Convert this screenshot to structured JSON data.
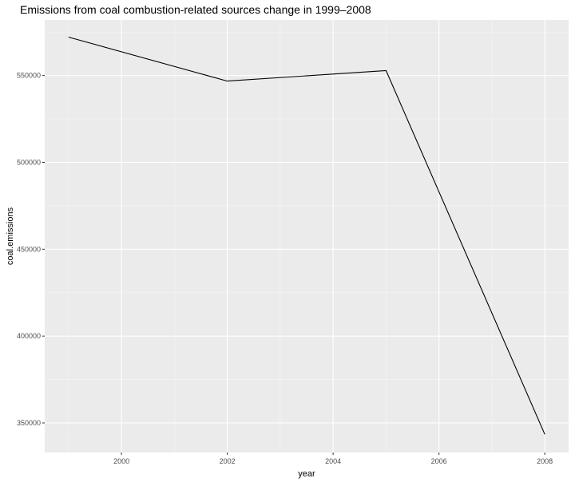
{
  "chart_data": {
    "type": "line",
    "title": "Emissions from coal combustion-related sources change in 1999–2008",
    "xlabel": "year",
    "ylabel": "coal.emissions",
    "x": [
      1999,
      2002,
      2005,
      2008
    ],
    "series": [
      {
        "values": [
          572126,
          546789,
          552881,
          343432
        ]
      }
    ],
    "xlim": [
      1998.55,
      2008.45
    ],
    "ylim": [
      333000,
      582000
    ],
    "xticks": [
      2000,
      2002,
      2004,
      2006,
      2008
    ],
    "yticks": [
      350000,
      400000,
      450000,
      500000,
      550000
    ],
    "xtick_labels": [
      "2000",
      "2002",
      "2004",
      "2006",
      "2008"
    ],
    "ytick_labels": [
      "350000",
      "400000",
      "450000",
      "500000",
      "550000"
    ],
    "grid": true,
    "legend": "none",
    "colors": {
      "panel_background": "#EBEBEB",
      "grid_major": "#FFFFFF",
      "grid_minor": "#F5F5F5",
      "line": "#000000",
      "tick": "#333333"
    }
  }
}
